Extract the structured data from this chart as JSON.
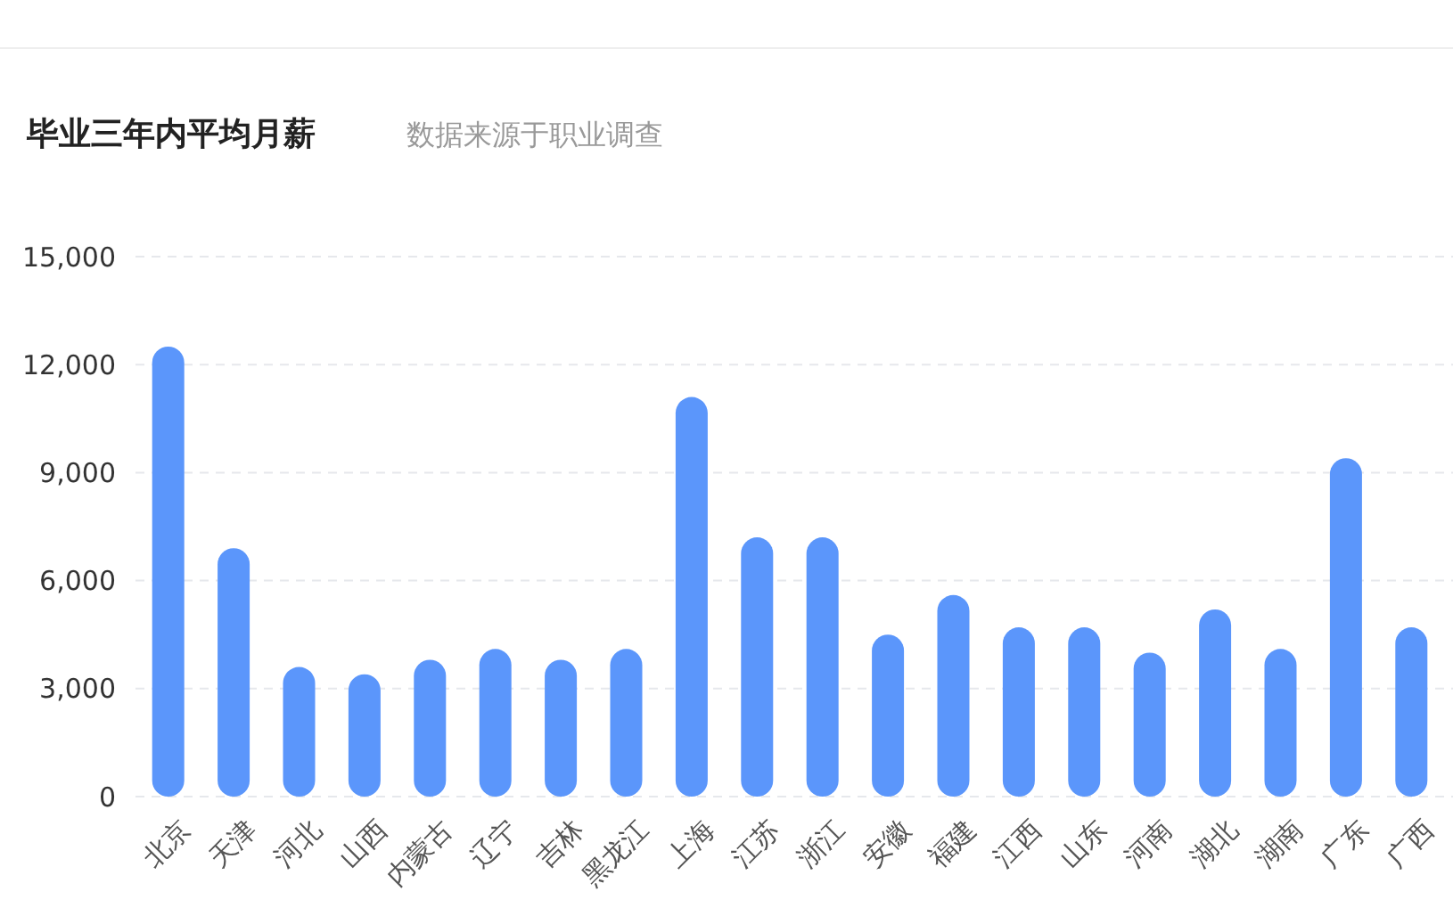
{
  "chart_data": {
    "type": "bar",
    "title": "毕业三年内平均月薪",
    "subtitle": "数据来源于职业调查",
    "categories": [
      "北京",
      "天津",
      "河北",
      "山西",
      "内蒙古",
      "辽宁",
      "吉林",
      "黑龙江",
      "上海",
      "江苏",
      "浙江",
      "安徽",
      "福建",
      "江西",
      "山东",
      "河南",
      "湖北",
      "湖南",
      "广东",
      "广西"
    ],
    "values": [
      12500,
      6900,
      3600,
      3400,
      3800,
      4100,
      3800,
      4100,
      11100,
      7200,
      7200,
      4500,
      5600,
      4700,
      4700,
      4000,
      5200,
      4100,
      9400,
      4700
    ],
    "color": "#5b96fb",
    "ylim": [
      0,
      15000
    ],
    "yticks": [
      {
        "value": 0,
        "label": "0"
      },
      {
        "value": 3000,
        "label": "3,000"
      },
      {
        "value": 6000,
        "label": "6,000"
      },
      {
        "value": 9000,
        "label": "9,000"
      },
      {
        "value": 12000,
        "label": "12,000"
      },
      {
        "value": 15000,
        "label": "15,000"
      }
    ],
    "grid": "y"
  }
}
